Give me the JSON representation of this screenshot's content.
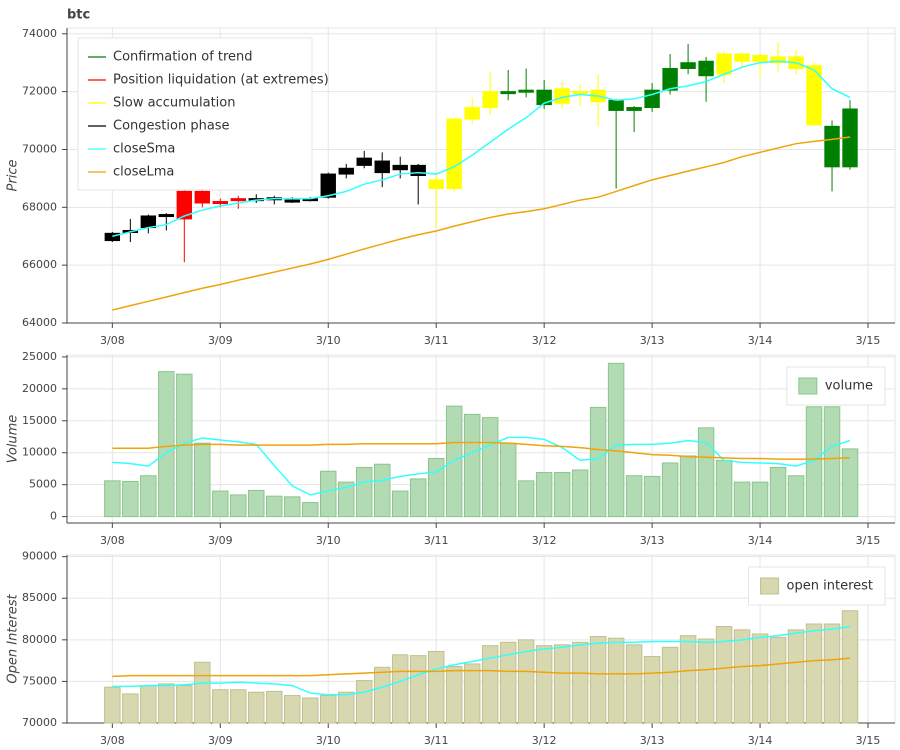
{
  "chart_data": [
    {
      "type": "candlestick",
      "title": "btc",
      "ylabel": "Price",
      "x": [
        8,
        8.1667,
        8.3333,
        8.5,
        8.6667,
        8.8333,
        9,
        9.1667,
        9.3333,
        9.5,
        9.6667,
        9.8333,
        10,
        10.1667,
        10.3333,
        10.5,
        10.6667,
        10.8333,
        11,
        11.1667,
        11.3333,
        11.5,
        11.6667,
        11.8333,
        12,
        12.1667,
        12.3333,
        12.5,
        12.6667,
        12.8333,
        13,
        13.1667,
        13.3333,
        13.5,
        13.6667,
        13.8333,
        14,
        14.1667,
        14.3333,
        14.5,
        14.6667,
        14.8333
      ],
      "open": [
        66850,
        67150,
        67300,
        67700,
        68550,
        68550,
        68200,
        68250,
        68280,
        68300,
        68200,
        68250,
        68350,
        69150,
        69450,
        69600,
        69450,
        69450,
        68950,
        68650,
        71050,
        71450,
        71950,
        72000,
        72050,
        72100,
        71950,
        72050,
        71700,
        71450,
        71450,
        72050,
        72800,
        73050,
        72600,
        73300,
        73250,
        73200,
        73200,
        72900,
        70800,
        69400
      ],
      "high": [
        67150,
        67600,
        67750,
        67800,
        68600,
        68600,
        68300,
        68400,
        68450,
        68400,
        68350,
        68350,
        69200,
        69500,
        69950,
        69900,
        69750,
        69500,
        69200,
        71100,
        71800,
        72700,
        72750,
        72800,
        72400,
        72350,
        72250,
        72600,
        71750,
        71500,
        72300,
        73300,
        73650,
        73200,
        73400,
        73350,
        73300,
        73700,
        73450,
        73000,
        71000,
        71700
      ],
      "low": [
        66800,
        66800,
        67100,
        67200,
        66100,
        68000,
        68000,
        67950,
        68150,
        68100,
        68150,
        68200,
        68300,
        69000,
        69350,
        68700,
        69000,
        68100,
        67300,
        68550,
        70900,
        71200,
        71700,
        71800,
        71400,
        71400,
        71500,
        70800,
        68650,
        70600,
        71300,
        71900,
        72600,
        71650,
        72300,
        72800,
        72500,
        72700,
        72600,
        70800,
        68550,
        69300
      ],
      "close": [
        67100,
        67200,
        67700,
        67750,
        67600,
        68150,
        68150,
        68300,
        68300,
        68330,
        68250,
        68300,
        69150,
        69350,
        69700,
        69200,
        69300,
        69100,
        68650,
        71050,
        71450,
        72000,
        72000,
        72050,
        71550,
        71600,
        72000,
        71650,
        71350,
        71350,
        72050,
        72800,
        73000,
        72550,
        73300,
        73050,
        73050,
        73000,
        72800,
        70850,
        69400,
        71400
      ],
      "colors": [
        "#000000",
        "#000000",
        "#000000",
        "#000000",
        "#ff0000",
        "#ff0000",
        "#ff0000",
        "#ff0000",
        "#000000",
        "#000000",
        "#000000",
        "#000000",
        "#000000",
        "#000000",
        "#000000",
        "#000000",
        "#000000",
        "#000000",
        "#ffff00",
        "#ffff00",
        "#ffff00",
        "#ffff00",
        "#008000",
        "#008000",
        "#008000",
        "#ffff00",
        "#ffff00",
        "#ffff00",
        "#008000",
        "#008000",
        "#008000",
        "#008000",
        "#008000",
        "#008000",
        "#ffff00",
        "#ffff00",
        "#ffff00",
        "#ffff00",
        "#ffff00",
        "#ffff00",
        "#008000",
        "#008000"
      ],
      "phases": [
        {
          "name": "Confirmation of trend",
          "color": "#008000"
        },
        {
          "name": "Position liquidation (at extremes)",
          "color": "#ff0000"
        },
        {
          "name": "Slow accumulation",
          "color": "#ffff00"
        },
        {
          "name": "Congestion phase",
          "color": "#000000"
        }
      ],
      "series": [
        {
          "name": "closeSma",
          "color": "#33ffff",
          "values": [
            67000,
            67150,
            67300,
            67400,
            67700,
            67900,
            68050,
            68150,
            68250,
            68300,
            68300,
            68300,
            68400,
            68550,
            68800,
            68950,
            69150,
            69200,
            69150,
            69400,
            69800,
            70250,
            70700,
            71100,
            71600,
            71800,
            71900,
            71850,
            71700,
            71750,
            71900,
            72100,
            72200,
            72350,
            72600,
            72850,
            73000,
            73050,
            73000,
            72750,
            72100,
            71800
          ]
        },
        {
          "name": "closeLma",
          "color": "#f0a30a",
          "values": [
            64450,
            64600,
            64750,
            64900,
            65050,
            65200,
            65330,
            65480,
            65620,
            65760,
            65900,
            66040,
            66200,
            66380,
            66560,
            66730,
            66900,
            67050,
            67180,
            67350,
            67500,
            67650,
            67770,
            67850,
            67950,
            68100,
            68250,
            68350,
            68550,
            68750,
            68950,
            69100,
            69250,
            69400,
            69550,
            69750,
            69900,
            70050,
            70200,
            70280,
            70350,
            70430
          ]
        }
      ],
      "xlim": [
        7.58,
        15.25
      ],
      "xticks": [
        {
          "value": 8,
          "label": "3/08"
        },
        {
          "value": 9,
          "label": "3/09"
        },
        {
          "value": 10,
          "label": "3/10"
        },
        {
          "value": 11,
          "label": "3/11"
        },
        {
          "value": 12,
          "label": "3/12"
        },
        {
          "value": 13,
          "label": "3/13"
        },
        {
          "value": 14,
          "label": "3/14"
        },
        {
          "value": 15,
          "label": "3/15"
        }
      ],
      "ylim": [
        64000,
        74200
      ],
      "yticks": [
        64000,
        66000,
        68000,
        70000,
        72000,
        74000
      ],
      "grid": true,
      "legend": "top_left"
    },
    {
      "type": "bar",
      "ylabel": "Volume",
      "name": "volume",
      "color": "#b3dbb3",
      "edgecolor": "#8cc58c",
      "x": [
        8,
        8.1667,
        8.3333,
        8.5,
        8.6667,
        8.8333,
        9,
        9.1667,
        9.3333,
        9.5,
        9.6667,
        9.8333,
        10,
        10.1667,
        10.3333,
        10.5,
        10.6667,
        10.8333,
        11,
        11.1667,
        11.3333,
        11.5,
        11.6667,
        11.8333,
        12,
        12.1667,
        12.3333,
        12.5,
        12.6667,
        12.8333,
        13,
        13.1667,
        13.3333,
        13.5,
        13.6667,
        13.8333,
        14,
        14.1667,
        14.3333,
        14.5,
        14.6667,
        14.8333
      ],
      "values": [
        5600,
        5500,
        6400,
        22700,
        22300,
        11500,
        4000,
        3400,
        4100,
        3200,
        3100,
        2200,
        7100,
        5400,
        7700,
        8200,
        4000,
        5900,
        9100,
        17300,
        16000,
        15500,
        11500,
        5600,
        6900,
        6900,
        7300,
        17100,
        24000,
        6400,
        6300,
        8400,
        9500,
        13900,
        8800,
        5400,
        5400,
        7700,
        6400,
        17200,
        17200,
        10600
      ],
      "series": [
        {
          "color": "#33ffff",
          "values": [
            8500,
            8300,
            7900,
            10000,
            11500,
            12300,
            12000,
            11700,
            11300,
            8000,
            4800,
            3400,
            4000,
            4600,
            5400,
            5700,
            6300,
            6700,
            7000,
            8800,
            10000,
            11200,
            12400,
            12400,
            12100,
            10800,
            8800,
            9100,
            11200,
            11300,
            11300,
            11500,
            11900,
            11600,
            8800,
            8500,
            8400,
            8300,
            7900,
            8800,
            11000,
            11900
          ]
        },
        {
          "color": "#f0a30a",
          "values": [
            10700,
            10700,
            10700,
            11000,
            11200,
            11300,
            11300,
            11200,
            11200,
            11200,
            11200,
            11200,
            11300,
            11300,
            11400,
            11400,
            11400,
            11400,
            11400,
            11600,
            11600,
            11600,
            11500,
            11300,
            11100,
            11000,
            10800,
            10500,
            10300,
            10000,
            9700,
            9600,
            9400,
            9300,
            9200,
            9100,
            9100,
            9000,
            9000,
            9000,
            9100,
            9200
          ]
        }
      ],
      "xlim": [
        7.58,
        15.25
      ],
      "xticks": [
        {
          "value": 8,
          "label": "3/08"
        },
        {
          "value": 9,
          "label": "3/09"
        },
        {
          "value": 10,
          "label": "3/10"
        },
        {
          "value": 11,
          "label": "3/11"
        },
        {
          "value": 12,
          "label": "3/12"
        },
        {
          "value": 13,
          "label": "3/13"
        },
        {
          "value": 14,
          "label": "3/14"
        },
        {
          "value": 15,
          "label": "3/15"
        }
      ],
      "ylim": [
        -1000,
        25300
      ],
      "yticks": [
        0,
        5000,
        10000,
        15000,
        20000,
        25000
      ],
      "grid": true,
      "legend": "top_right"
    },
    {
      "type": "bar",
      "ylabel": "Open Interest",
      "name": "open interest",
      "color": "#d8d8b0",
      "edgecolor": "#c0c090",
      "x": [
        8,
        8.1667,
        8.3333,
        8.5,
        8.6667,
        8.8333,
        9,
        9.1667,
        9.3333,
        9.5,
        9.6667,
        9.8333,
        10,
        10.1667,
        10.3333,
        10.5,
        10.6667,
        10.8333,
        11,
        11.1667,
        11.3333,
        11.5,
        11.6667,
        11.8333,
        12,
        12.1667,
        12.3333,
        12.5,
        12.6667,
        12.8333,
        13,
        13.1667,
        13.3333,
        13.5,
        13.6667,
        13.8333,
        14,
        14.1667,
        14.3333,
        14.5,
        14.6667,
        14.8333
      ],
      "values": [
        74300,
        73500,
        74500,
        74700,
        74500,
        77300,
        74000,
        74000,
        73700,
        73800,
        73300,
        73000,
        73300,
        73700,
        75100,
        76700,
        78200,
        78100,
        78600,
        76800,
        77100,
        79300,
        79700,
        80000,
        79300,
        79400,
        79700,
        80400,
        80200,
        79400,
        78000,
        79100,
        80500,
        80100,
        81600,
        81200,
        80700,
        80300,
        81200,
        81900,
        81900,
        83500
      ],
      "series": [
        {
          "color": "#33ffff",
          "values": [
            74400,
            74400,
            74500,
            74500,
            74600,
            74800,
            74800,
            74900,
            74800,
            74700,
            74500,
            73600,
            73400,
            73400,
            73700,
            74300,
            75000,
            75800,
            76500,
            77000,
            77400,
            77800,
            78200,
            78600,
            78900,
            79100,
            79400,
            79600,
            79700,
            79700,
            79800,
            79800,
            79800,
            79700,
            79800,
            80000,
            80300,
            80500,
            80800,
            81100,
            81300,
            81600
          ]
        },
        {
          "color": "#f0a30a",
          "values": [
            75600,
            75700,
            75700,
            75700,
            75700,
            75700,
            75700,
            75700,
            75700,
            75700,
            75700,
            75700,
            75800,
            75900,
            76000,
            76100,
            76200,
            76200,
            76200,
            76300,
            76300,
            76300,
            76200,
            76200,
            76100,
            76000,
            76000,
            75900,
            75900,
            75900,
            76000,
            76100,
            76300,
            76400,
            76600,
            76800,
            76900,
            77100,
            77300,
            77500,
            77600,
            77800
          ]
        }
      ],
      "xlim": [
        7.58,
        15.25
      ],
      "xticks": [
        {
          "value": 8,
          "label": "3/08"
        },
        {
          "value": 9,
          "label": "3/09"
        },
        {
          "value": 10,
          "label": "3/10"
        },
        {
          "value": 11,
          "label": "3/11"
        },
        {
          "value": 12,
          "label": "3/12"
        },
        {
          "value": 13,
          "label": "3/13"
        },
        {
          "value": 14,
          "label": "3/14"
        },
        {
          "value": 15,
          "label": "3/15"
        }
      ],
      "ylim": [
        70000,
        90200
      ],
      "yticks": [
        70000,
        75000,
        80000,
        85000,
        90000
      ],
      "grid": true,
      "legend": "top_right"
    }
  ]
}
